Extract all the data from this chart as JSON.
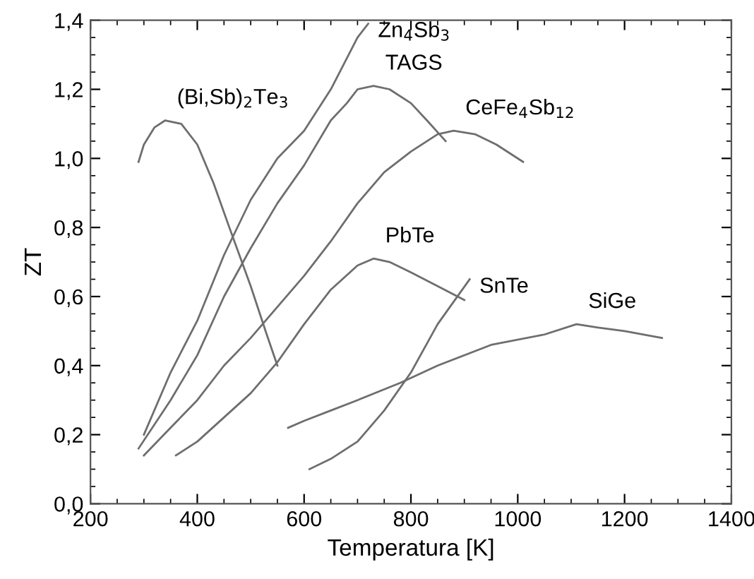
{
  "chart_data": {
    "type": "line",
    "xlabel": "Temperatura [K]",
    "ylabel": "ZT",
    "xlim": [
      200,
      1400
    ],
    "ylim": [
      0,
      1.4
    ],
    "xticks": [
      200,
      400,
      600,
      800,
      1000,
      1200,
      1400
    ],
    "yticks": [
      {
        "value": 0,
        "label": "0,0"
      },
      {
        "value": 0.2,
        "label": "0,2"
      },
      {
        "value": 0.4,
        "label": "0,4"
      },
      {
        "value": 0.6,
        "label": "0,6"
      },
      {
        "value": 0.8,
        "label": "0,8"
      },
      {
        "value": 1.0,
        "label": "1,0"
      },
      {
        "value": 1.2,
        "label": "1,2"
      },
      {
        "value": 1.4,
        "label": "1,4"
      }
    ],
    "grid": false,
    "legend": false,
    "marker": "none",
    "line_style": "solid",
    "series": [
      {
        "name": "(Bi,Sb)$_{2}$Te$_{3}$",
        "color": "#6e6e6e",
        "x": [
          290,
          300,
          320,
          340,
          370,
          400,
          430,
          460,
          500,
          530,
          550
        ],
        "values": [
          0.99,
          1.04,
          1.09,
          1.11,
          1.1,
          1.04,
          0.93,
          0.8,
          0.63,
          0.49,
          0.4
        ]
      },
      {
        "name": "Zn$_{4}$Sb$_{3}$",
        "color": "#6e6e6e",
        "x": [
          300,
          350,
          400,
          450,
          500,
          550,
          600,
          650,
          700,
          720
        ],
        "values": [
          0.2,
          0.38,
          0.53,
          0.72,
          0.88,
          1.0,
          1.08,
          1.2,
          1.35,
          1.39
        ]
      },
      {
        "name": "TAGS",
        "color": "#6e6e6e",
        "x": [
          290,
          350,
          400,
          450,
          500,
          550,
          600,
          650,
          680,
          700,
          730,
          760,
          800,
          830,
          865
        ],
        "values": [
          0.16,
          0.3,
          0.43,
          0.6,
          0.74,
          0.87,
          0.98,
          1.11,
          1.16,
          1.2,
          1.21,
          1.2,
          1.16,
          1.11,
          1.05
        ]
      },
      {
        "name": "CeFe$_{4}$Sb$_{12}$",
        "color": "#6e6e6e",
        "x": [
          300,
          350,
          400,
          450,
          500,
          550,
          600,
          650,
          700,
          750,
          800,
          850,
          880,
          920,
          960,
          1010
        ],
        "values": [
          0.14,
          0.22,
          0.3,
          0.4,
          0.48,
          0.57,
          0.66,
          0.76,
          0.87,
          0.96,
          1.02,
          1.07,
          1.08,
          1.07,
          1.04,
          0.99
        ]
      },
      {
        "name": "PbTe",
        "color": "#6e6e6e",
        "x": [
          360,
          400,
          450,
          500,
          550,
          600,
          650,
          700,
          730,
          760,
          800,
          850,
          900
        ],
        "values": [
          0.14,
          0.18,
          0.25,
          0.32,
          0.41,
          0.52,
          0.62,
          0.69,
          0.71,
          0.7,
          0.67,
          0.63,
          0.59
        ]
      },
      {
        "name": "SnTe",
        "color": "#6e6e6e",
        "x": [
          610,
          650,
          700,
          750,
          800,
          850,
          910
        ],
        "values": [
          0.1,
          0.13,
          0.18,
          0.27,
          0.38,
          0.52,
          0.65
        ]
      },
      {
        "name": "SiGe",
        "color": "#6e6e6e",
        "x": [
          570,
          600,
          650,
          700,
          780,
          850,
          950,
          1050,
          1110,
          1150,
          1200,
          1270
        ],
        "values": [
          0.22,
          0.24,
          0.27,
          0.3,
          0.35,
          0.4,
          0.46,
          0.49,
          0.52,
          0.51,
          0.5,
          0.48
        ]
      }
    ]
  }
}
